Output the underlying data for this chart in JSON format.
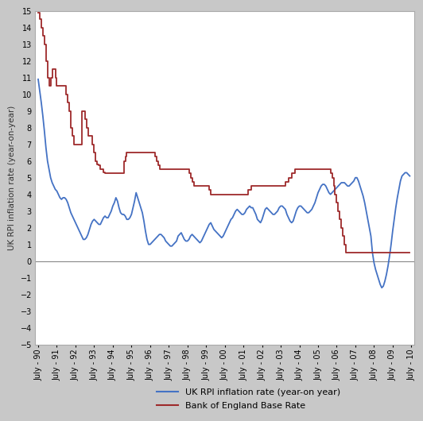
{
  "ylabel": "UK RPI inflation rate (year-on-year)",
  "ylim": [
    -5,
    15
  ],
  "yticks": [
    -5,
    -4,
    -3,
    -2,
    -1,
    0,
    1,
    2,
    3,
    4,
    5,
    6,
    7,
    8,
    9,
    10,
    11,
    12,
    13,
    14,
    15
  ],
  "xtick_labels": [
    "July - 90",
    "July - 91",
    "July - 92",
    "July - 93",
    "July - 94",
    "July - 95",
    "July - 96",
    "July - 97",
    "July - 98",
    "July - 99",
    "July - 00",
    "July - 01",
    "July - 02",
    "July - 03",
    "July - 04",
    "July - 05",
    "July - 06",
    "July - 07",
    "July - 08",
    "July - 09",
    "July - 10"
  ],
  "rpi_color": "#4472C4",
  "boe_color": "#9E2A2B",
  "line_width": 1.3,
  "background_color": "#FFFFFF",
  "outer_background": "#C8C8C8",
  "legend_rpi": "UK RPI inflation rate (year-on year)",
  "legend_boe": "Bank of England Base Rate",
  "rpi_data": [
    10.9,
    10.2,
    9.5,
    8.7,
    7.8,
    6.8,
    6.0,
    5.5,
    5.0,
    4.7,
    4.5,
    4.3,
    4.2,
    4.0,
    3.8,
    3.7,
    3.8,
    3.8,
    3.7,
    3.5,
    3.2,
    2.9,
    2.7,
    2.5,
    2.3,
    2.1,
    1.9,
    1.7,
    1.5,
    1.3,
    1.3,
    1.4,
    1.6,
    1.9,
    2.2,
    2.4,
    2.5,
    2.4,
    2.3,
    2.2,
    2.2,
    2.4,
    2.6,
    2.7,
    2.6,
    2.6,
    2.8,
    3.0,
    3.3,
    3.5,
    3.8,
    3.6,
    3.2,
    2.9,
    2.8,
    2.8,
    2.7,
    2.5,
    2.5,
    2.6,
    2.8,
    3.2,
    3.6,
    4.1,
    3.8,
    3.5,
    3.2,
    2.9,
    2.4,
    1.8,
    1.3,
    1.0,
    1.0,
    1.1,
    1.2,
    1.3,
    1.4,
    1.5,
    1.6,
    1.6,
    1.5,
    1.4,
    1.2,
    1.1,
    1.0,
    0.9,
    0.9,
    1.0,
    1.1,
    1.2,
    1.5,
    1.6,
    1.7,
    1.5,
    1.3,
    1.2,
    1.2,
    1.3,
    1.5,
    1.6,
    1.5,
    1.4,
    1.3,
    1.2,
    1.1,
    1.2,
    1.4,
    1.6,
    1.8,
    2.0,
    2.2,
    2.3,
    2.1,
    1.9,
    1.8,
    1.7,
    1.6,
    1.5,
    1.4,
    1.5,
    1.7,
    1.9,
    2.1,
    2.3,
    2.5,
    2.6,
    2.8,
    3.0,
    3.1,
    3.0,
    2.9,
    2.8,
    2.8,
    2.9,
    3.1,
    3.2,
    3.3,
    3.2,
    3.2,
    3.0,
    2.8,
    2.5,
    2.4,
    2.3,
    2.5,
    2.8,
    3.1,
    3.2,
    3.1,
    3.0,
    2.9,
    2.8,
    2.8,
    2.9,
    3.0,
    3.2,
    3.3,
    3.3,
    3.2,
    3.1,
    2.8,
    2.6,
    2.4,
    2.3,
    2.4,
    2.7,
    3.0,
    3.2,
    3.3,
    3.3,
    3.2,
    3.1,
    3.0,
    2.9,
    2.9,
    3.0,
    3.1,
    3.3,
    3.5,
    3.8,
    4.1,
    4.3,
    4.5,
    4.6,
    4.6,
    4.5,
    4.3,
    4.1,
    4.0,
    4.1,
    4.2,
    4.3,
    4.4,
    4.5,
    4.6,
    4.7,
    4.7,
    4.7,
    4.6,
    4.5,
    4.5,
    4.6,
    4.7,
    4.8,
    5.0,
    5.0,
    4.8,
    4.5,
    4.2,
    3.9,
    3.5,
    3.0,
    2.5,
    2.0,
    1.5,
    0.5,
    -0.1,
    -0.5,
    -0.8,
    -1.1,
    -1.4,
    -1.6,
    -1.5,
    -1.2,
    -0.8,
    -0.3,
    0.3,
    1.0,
    1.8,
    2.5,
    3.2,
    3.8,
    4.3,
    4.8,
    5.1,
    5.2,
    5.3,
    5.3,
    5.2,
    5.1
  ],
  "boe_data": [
    14.9,
    14.5,
    14.0,
    13.5,
    13.0,
    12.0,
    11.0,
    10.5,
    11.0,
    11.5,
    11.5,
    11.0,
    10.5,
    10.5,
    10.5,
    10.5,
    10.5,
    10.5,
    10.0,
    9.5,
    9.0,
    8.0,
    7.5,
    7.0,
    7.0,
    7.0,
    7.0,
    7.0,
    9.0,
    9.0,
    8.5,
    8.0,
    7.5,
    7.5,
    7.5,
    7.0,
    6.5,
    6.0,
    5.8,
    5.75,
    5.5,
    5.5,
    5.3,
    5.25,
    5.25,
    5.25,
    5.25,
    5.25,
    5.25,
    5.25,
    5.25,
    5.25,
    5.25,
    5.25,
    5.25,
    6.0,
    6.25,
    6.5,
    6.5,
    6.5,
    6.5,
    6.5,
    6.5,
    6.5,
    6.5,
    6.5,
    6.5,
    6.5,
    6.5,
    6.5,
    6.5,
    6.5,
    6.5,
    6.5,
    6.5,
    6.25,
    6.0,
    5.75,
    5.5,
    5.5,
    5.5,
    5.5,
    5.5,
    5.5,
    5.5,
    5.5,
    5.5,
    5.5,
    5.5,
    5.5,
    5.5,
    5.5,
    5.5,
    5.5,
    5.5,
    5.5,
    5.5,
    5.25,
    5.0,
    4.75,
    4.5,
    4.5,
    4.5,
    4.5,
    4.5,
    4.5,
    4.5,
    4.5,
    4.5,
    4.5,
    4.25,
    4.0,
    4.0,
    4.0,
    4.0,
    4.0,
    4.0,
    4.0,
    4.0,
    4.0,
    4.0,
    4.0,
    4.0,
    4.0,
    4.0,
    4.0,
    4.0,
    4.0,
    4.0,
    4.0,
    4.0,
    4.0,
    4.0,
    4.0,
    4.0,
    4.25,
    4.25,
    4.5,
    4.5,
    4.5,
    4.5,
    4.5,
    4.5,
    4.5,
    4.5,
    4.5,
    4.5,
    4.5,
    4.5,
    4.5,
    4.5,
    4.5,
    4.5,
    4.5,
    4.5,
    4.5,
    4.5,
    4.5,
    4.5,
    4.75,
    4.75,
    5.0,
    5.0,
    5.25,
    5.25,
    5.5,
    5.5,
    5.5,
    5.5,
    5.5,
    5.5,
    5.5,
    5.5,
    5.5,
    5.5,
    5.5,
    5.5,
    5.5,
    5.5,
    5.5,
    5.5,
    5.5,
    5.5,
    5.5,
    5.5,
    5.5,
    5.5,
    5.5,
    5.25,
    5.0,
    4.5,
    4.0,
    3.5,
    3.0,
    2.5,
    2.0,
    1.5,
    1.0,
    0.5,
    0.5,
    0.5,
    0.5,
    0.5,
    0.5,
    0.5,
    0.5,
    0.5,
    0.5,
    0.5,
    0.5,
    0.5,
    0.5,
    0.5,
    0.5,
    0.5,
    0.5,
    0.5,
    0.5,
    0.5,
    0.5,
    0.5,
    0.5,
    0.5,
    0.5,
    0.5,
    0.5,
    0.5,
    0.5,
    0.5,
    0.5,
    0.5,
    0.5,
    0.5,
    0.5,
    0.5,
    0.5,
    0.5,
    0.5,
    0.5,
    0.5
  ]
}
